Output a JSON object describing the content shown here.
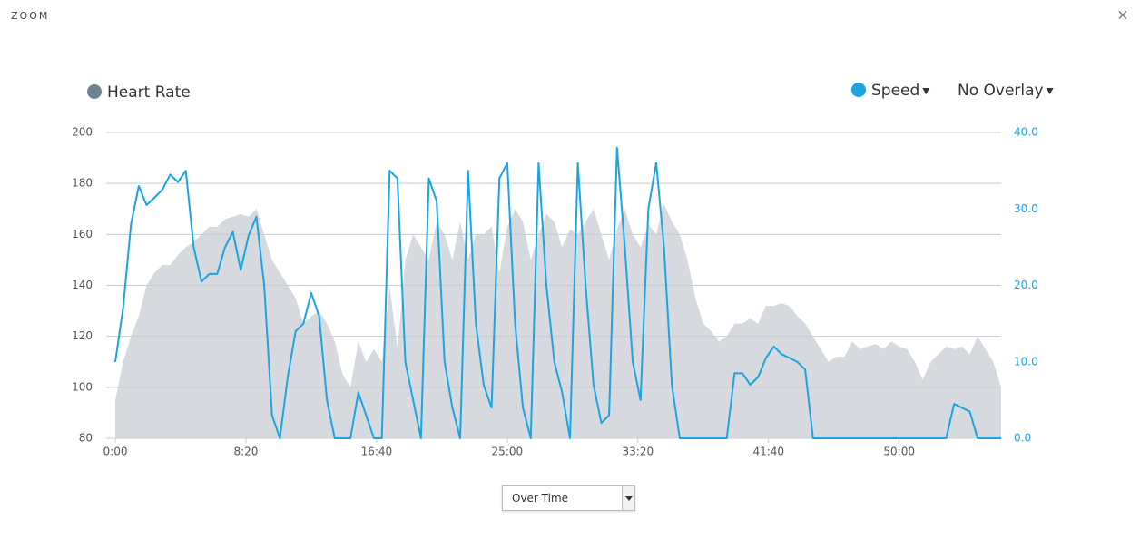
{
  "header": {
    "title": "ZOOM",
    "close": "×"
  },
  "chart_data": {
    "type": "line",
    "x": [
      0,
      30,
      60,
      90,
      120,
      150,
      180,
      210,
      240,
      270,
      300,
      330,
      360,
      390,
      420,
      450,
      480,
      510,
      540,
      570,
      600,
      630,
      660,
      690,
      720,
      750,
      780,
      810,
      840,
      870,
      900,
      930,
      960,
      990,
      1020,
      1050,
      1080,
      1110,
      1140,
      1170,
      1200,
      1230,
      1260,
      1290,
      1320,
      1350,
      1380,
      1410,
      1440,
      1470,
      1500,
      1530,
      1560,
      1590,
      1620,
      1650,
      1680,
      1710,
      1740,
      1770,
      1800,
      1830,
      1860,
      1890,
      1920,
      1950,
      1980,
      2010,
      2040,
      2070,
      2100,
      2130,
      2160,
      2190,
      2220,
      2250,
      2280,
      2310,
      2340,
      2370,
      2400,
      2430,
      2460,
      2490,
      2520,
      2550,
      2580,
      2610,
      2640,
      2670,
      2700,
      2730,
      2760,
      2790,
      2820,
      2850,
      2880,
      2910,
      2940,
      2970,
      3000,
      3030,
      3060,
      3090,
      3120,
      3150,
      3180,
      3210,
      3240,
      3270,
      3300,
      3330,
      3360,
      3390
    ],
    "series": [
      {
        "name": "Heart Rate",
        "type": "area",
        "color": "#d6dade",
        "legend_color": "#6e8391",
        "values": [
          95,
          110,
          120,
          128,
          140,
          145,
          148,
          148,
          152,
          155,
          157,
          160,
          163,
          163,
          166,
          167,
          168,
          167,
          170,
          160,
          150,
          145,
          140,
          135,
          125,
          128,
          130,
          125,
          118,
          105,
          100,
          118,
          110,
          115,
          110,
          140,
          115,
          150,
          160,
          155,
          150,
          165,
          160,
          150,
          165,
          150,
          160,
          160,
          163,
          145,
          163,
          170,
          165,
          150,
          160,
          168,
          165,
          155,
          162,
          160,
          165,
          170,
          160,
          150,
          162,
          170,
          160,
          155,
          164,
          160,
          172,
          165,
          160,
          150,
          135,
          125,
          122,
          118,
          120,
          125,
          125,
          127,
          125,
          132,
          132,
          133,
          132,
          128,
          125,
          120,
          115,
          110,
          112,
          112,
          118,
          115,
          116,
          117,
          115,
          118,
          116,
          115,
          110,
          103,
          110,
          113,
          116,
          115,
          116,
          113,
          120,
          115,
          110,
          100
        ]
      },
      {
        "name": "Speed",
        "type": "line",
        "axis": "y2",
        "color": "#1ba3e2",
        "dropdown": true,
        "values": [
          10,
          17,
          28,
          33,
          30.5,
          31.5,
          32.5,
          34.5,
          33.5,
          35,
          25,
          20.5,
          21.5,
          21.5,
          25,
          27,
          22,
          26.5,
          29,
          20,
          3,
          0,
          8,
          14,
          15,
          19,
          16,
          5,
          0,
          0,
          0,
          6,
          3,
          0,
          0,
          35,
          34,
          10,
          5,
          0,
          34,
          31,
          10,
          4,
          0,
          35,
          15,
          7,
          4,
          34,
          36,
          15,
          4,
          0,
          36,
          20,
          10,
          6,
          0,
          36,
          20,
          7,
          2,
          3,
          38,
          25,
          10,
          5,
          30,
          36,
          25,
          7,
          0,
          0,
          0,
          0,
          0,
          0,
          0,
          8.5,
          8.5,
          7,
          8,
          10.5,
          12,
          11,
          10.5,
          10,
          9,
          0,
          0,
          0,
          0,
          0,
          0,
          0,
          0,
          0,
          0,
          0,
          0,
          0,
          0,
          0,
          0,
          0,
          0,
          4.5,
          4,
          3.5,
          0,
          0,
          0,
          0
        ]
      }
    ],
    "overlay": "No Overlay",
    "xlim": [
      0,
      3390
    ],
    "xticks": [
      {
        "value": 0,
        "label": "0:00"
      },
      {
        "value": 500,
        "label": "8:20"
      },
      {
        "value": 1000,
        "label": "16:40"
      },
      {
        "value": 1500,
        "label": "25:00"
      },
      {
        "value": 2000,
        "label": "33:20"
      },
      {
        "value": 2500,
        "label": "41:40"
      },
      {
        "value": 3000,
        "label": "50:00"
      }
    ],
    "ylim": [
      80,
      200
    ],
    "yticks": [
      80,
      100,
      120,
      140,
      160,
      180,
      200
    ],
    "y2lim": [
      0,
      40
    ],
    "y2ticks": [
      {
        "value": 0,
        "label": "0.0"
      },
      {
        "value": 10,
        "label": "10.0"
      },
      {
        "value": 20,
        "label": "20.0"
      },
      {
        "value": 30,
        "label": "30.0"
      },
      {
        "value": 40,
        "label": "40.0"
      }
    ],
    "grid": true,
    "view_select": "Over Time"
  }
}
